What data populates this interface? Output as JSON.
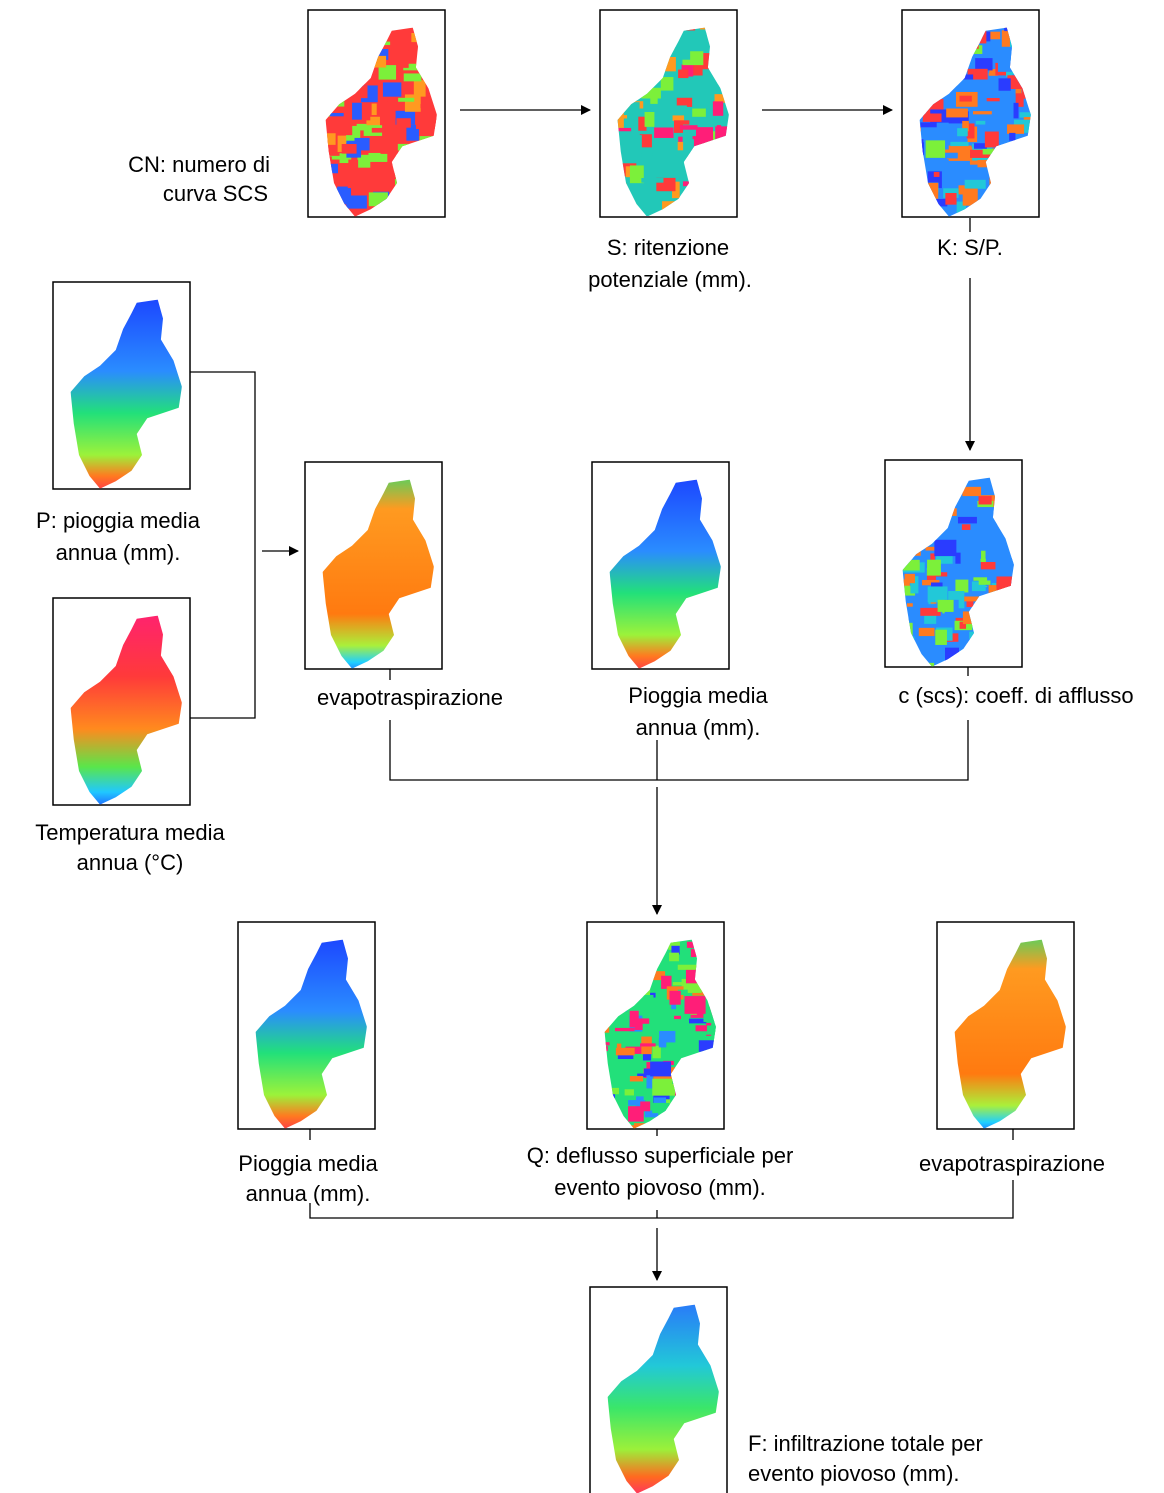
{
  "nodes": [
    {
      "label": [
        "CN: numero di",
        "curva SCS"
      ]
    },
    {
      "label": [
        "S: ritenzione",
        "potenziale (mm)."
      ]
    },
    {
      "label": [
        "K: S/P."
      ]
    },
    {
      "label": [
        "P: pioggia media",
        "annua (mm)."
      ]
    },
    {
      "label": [
        "Temperatura media",
        "annua (°C)"
      ]
    },
    {
      "label": [
        "evapotraspirazione"
      ]
    },
    {
      "label": [
        "Pioggia media",
        "annua (mm)."
      ]
    },
    {
      "label": [
        "c (scs): coeff. di afflusso"
      ]
    },
    {
      "label": [
        "Pioggia media",
        "annua (mm)."
      ]
    },
    {
      "label": [
        "Q: deflusso superficiale per",
        "evento piovoso (mm)."
      ]
    },
    {
      "label": [
        "evapotraspirazione"
      ]
    },
    {
      "label": [
        "F: infiltrazione totale per",
        "evento piovoso (mm)."
      ]
    }
  ]
}
